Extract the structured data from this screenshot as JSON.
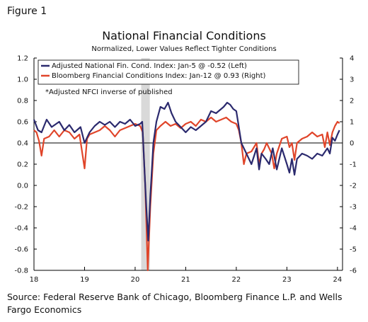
{
  "figure_label": "Figure 1",
  "source_text": "Source: Federal Reserve Bank of Chicago, Bloomberg Finance L.P. and Wells Fargo Economics",
  "colors": {
    "nfci": "#2b2a6e",
    "bloomberg": "#e0452a",
    "recession": "#d9d9d9",
    "axis": "#000000"
  },
  "chart_data": {
    "type": "line",
    "title": "National Financial Conditions",
    "subtitle": "Normalized, Lower Values Reflect Tighter Conditions",
    "note": "*Adjusted NFCI inverse of published",
    "xlim": [
      2018.0,
      2024.1
    ],
    "x_ticks": [
      2018,
      2019,
      2020,
      2021,
      2022,
      2023,
      2024
    ],
    "x_tick_labels": [
      "18",
      "19",
      "20",
      "21",
      "22",
      "23",
      "24"
    ],
    "left_axis": {
      "ylim": [
        -0.8,
        1.2
      ],
      "ticks": [
        1.2,
        1.0,
        0.8,
        0.6,
        0.4,
        0.2,
        0.0,
        -0.2,
        -0.4,
        -0.6,
        -0.8
      ],
      "tick_labels": [
        "1.2",
        "1.0",
        "0.8",
        "0.6",
        "0.4",
        "0.2",
        "0.0",
        "-0.2",
        "-0.4",
        "-0.6",
        "-0.8"
      ]
    },
    "right_axis": {
      "ylim": [
        -6,
        4
      ],
      "ticks": [
        4,
        3,
        2,
        1,
        0,
        -1,
        -2,
        -3,
        -4,
        -5,
        -6
      ],
      "tick_labels": [
        "4",
        "3",
        "2",
        "1",
        "0",
        "-1",
        "-2",
        "-3",
        "-4",
        "-5",
        "-6"
      ]
    },
    "reference_line": 0.4,
    "recession_shading": [
      2020.12,
      2020.29
    ],
    "legend_position": "top-left",
    "series": [
      {
        "name": "Adjusted National Fin. Cond. Index: Jan-5 @ -0.52 (Left)",
        "axis": "left",
        "x": [
          2018.0,
          2018.08,
          2018.15,
          2018.25,
          2018.35,
          2018.5,
          2018.6,
          2018.7,
          2018.8,
          2018.92,
          2019.0,
          2019.1,
          2019.2,
          2019.3,
          2019.4,
          2019.5,
          2019.6,
          2019.7,
          2019.8,
          2019.9,
          2020.0,
          2020.1,
          2020.14,
          2020.18,
          2020.22,
          2020.26,
          2020.3,
          2020.36,
          2020.42,
          2020.5,
          2020.58,
          2020.65,
          2020.72,
          2020.8,
          2020.9,
          2021.0,
          2021.1,
          2021.2,
          2021.3,
          2021.4,
          2021.5,
          2021.6,
          2021.7,
          2021.75,
          2021.82,
          2021.88,
          2021.94,
          2022.0,
          2022.05,
          2022.1,
          2022.2,
          2022.3,
          2022.4,
          2022.45,
          2022.5,
          2022.58,
          2022.65,
          2022.72,
          2022.8,
          2022.9,
          2023.0,
          2023.05,
          2023.1,
          2023.15,
          2023.2,
          2023.3,
          2023.4,
          2023.5,
          2023.6,
          2023.7,
          2023.8,
          2023.85,
          2023.9,
          2023.95,
          2024.0,
          2024.04
        ],
        "y": [
          0.62,
          0.52,
          0.5,
          0.62,
          0.55,
          0.6,
          0.52,
          0.57,
          0.5,
          0.55,
          0.4,
          0.5,
          0.56,
          0.6,
          0.57,
          0.6,
          0.55,
          0.6,
          0.58,
          0.62,
          0.56,
          0.58,
          0.6,
          0.2,
          -0.2,
          -0.52,
          -0.1,
          0.4,
          0.6,
          0.74,
          0.72,
          0.78,
          0.68,
          0.6,
          0.55,
          0.5,
          0.55,
          0.52,
          0.56,
          0.6,
          0.7,
          0.68,
          0.72,
          0.74,
          0.78,
          0.76,
          0.72,
          0.7,
          0.55,
          0.4,
          0.3,
          0.2,
          0.35,
          0.15,
          0.3,
          0.25,
          0.2,
          0.35,
          0.15,
          0.35,
          0.2,
          0.12,
          0.25,
          0.1,
          0.25,
          0.3,
          0.28,
          0.25,
          0.3,
          0.28,
          0.35,
          0.3,
          0.45,
          0.42,
          0.48,
          0.52
        ]
      },
      {
        "name": "Bloomberg Financial Conditions Index: Jan-12 @ 0.93 (Right)",
        "axis": "right",
        "x": [
          2018.0,
          2018.05,
          2018.1,
          2018.15,
          2018.2,
          2018.3,
          2018.4,
          2018.5,
          2018.6,
          2018.7,
          2018.8,
          2018.9,
          2019.0,
          2019.05,
          2019.1,
          2019.2,
          2019.3,
          2019.4,
          2019.5,
          2019.6,
          2019.7,
          2019.8,
          2019.9,
          2020.0,
          2020.1,
          2020.15,
          2020.2,
          2020.25,
          2020.3,
          2020.36,
          2020.42,
          2020.5,
          2020.6,
          2020.7,
          2020.8,
          2020.9,
          2021.0,
          2021.1,
          2021.2,
          2021.3,
          2021.4,
          2021.5,
          2021.6,
          2021.7,
          2021.8,
          2021.9,
          2022.0,
          2022.05,
          2022.1,
          2022.15,
          2022.2,
          2022.3,
          2022.4,
          2022.45,
          2022.5,
          2022.55,
          2022.6,
          2022.7,
          2022.75,
          2022.8,
          2022.9,
          2023.0,
          2023.05,
          2023.1,
          2023.15,
          2023.2,
          2023.3,
          2023.4,
          2023.5,
          2023.6,
          2023.7,
          2023.75,
          2023.8,
          2023.85,
          2023.9,
          2023.95,
          2024.0,
          2024.04
        ],
        "y": [
          0.6,
          0.5,
          0.1,
          -0.6,
          0.2,
          0.3,
          0.6,
          0.3,
          0.6,
          0.5,
          0.2,
          0.4,
          -1.2,
          0.2,
          0.4,
          0.5,
          0.6,
          0.8,
          0.6,
          0.3,
          0.6,
          0.7,
          0.8,
          0.9,
          0.8,
          0.5,
          -2.0,
          -6.0,
          -3.0,
          -0.5,
          0.6,
          0.8,
          1.0,
          0.8,
          0.9,
          0.7,
          0.9,
          1.0,
          0.8,
          1.1,
          1.0,
          1.2,
          1.0,
          1.1,
          1.2,
          1.0,
          0.9,
          0.6,
          0.0,
          -1.0,
          -0.5,
          -0.4,
          0.0,
          -1.0,
          -0.5,
          -0.3,
          0.0,
          -0.5,
          -1.2,
          -0.5,
          0.2,
          0.3,
          -0.2,
          0.0,
          -0.8,
          0.0,
          0.2,
          0.3,
          0.5,
          0.3,
          0.4,
          -0.2,
          0.5,
          -0.1,
          0.5,
          0.8,
          1.0,
          0.93
        ]
      }
    ]
  }
}
